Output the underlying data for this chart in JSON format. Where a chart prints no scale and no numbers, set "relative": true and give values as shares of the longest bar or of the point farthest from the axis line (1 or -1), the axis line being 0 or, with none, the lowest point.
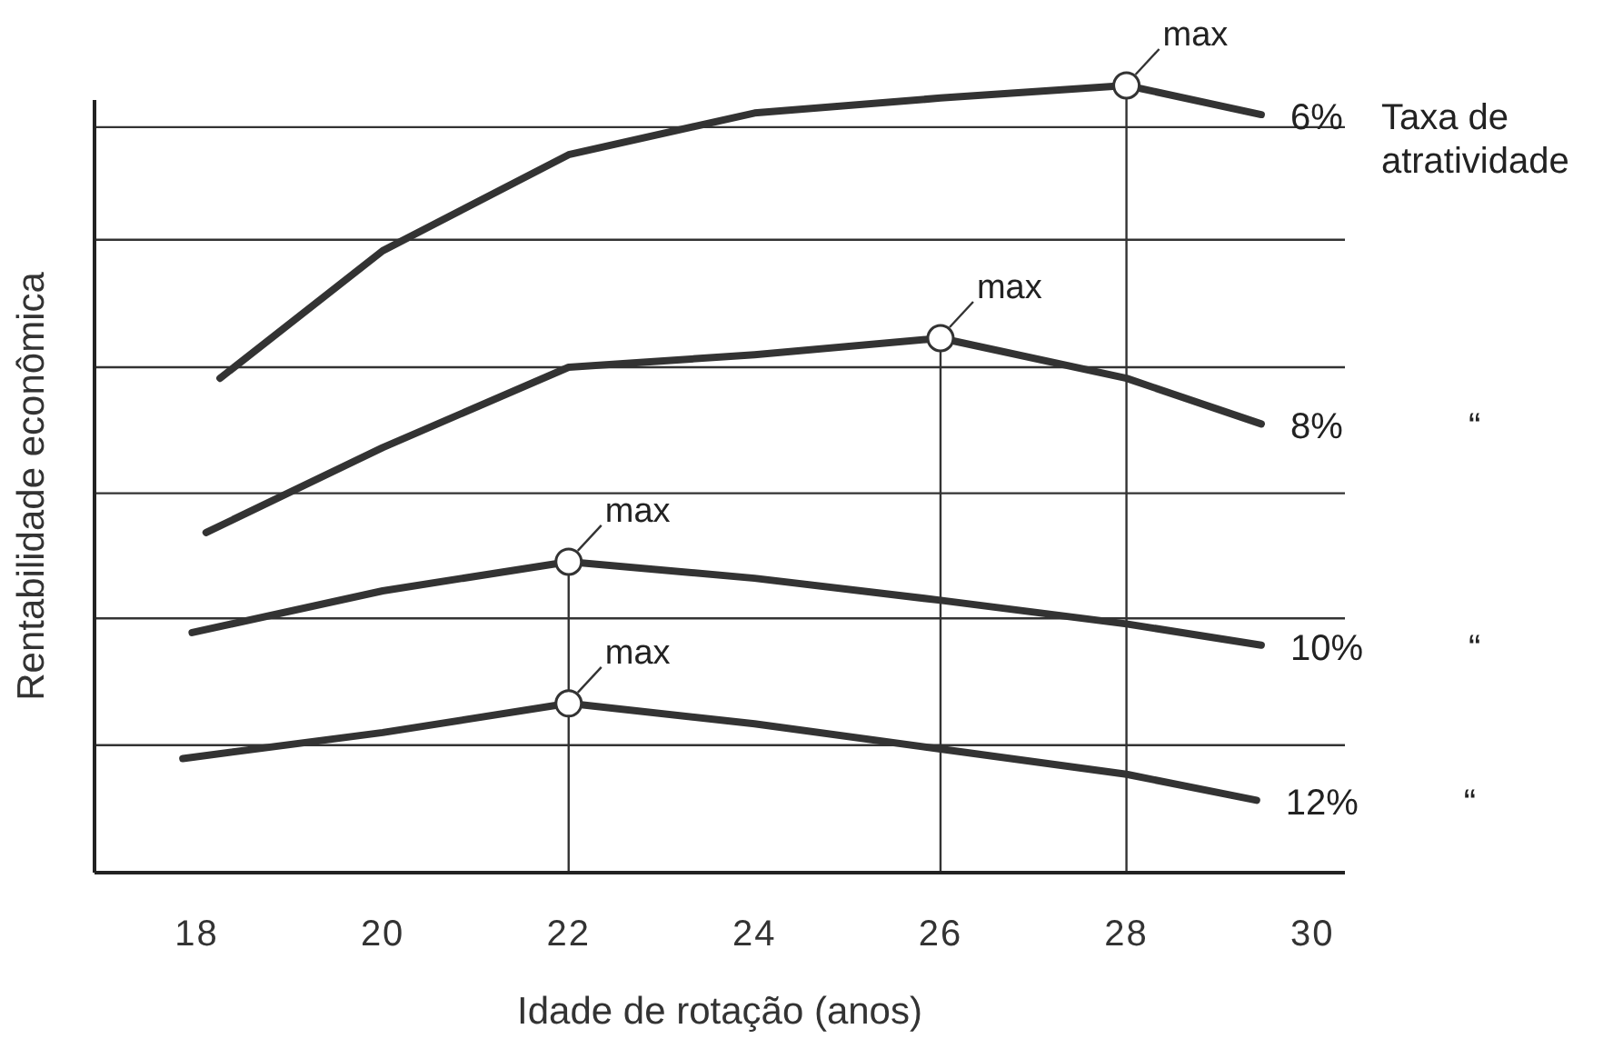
{
  "chart_data": {
    "type": "line",
    "relative": true,
    "xlabel": "Idade de rotação (anos)",
    "ylabel": "Rentabilidade econômica",
    "xlim": [
      16.9,
      30.35
    ],
    "xticks": [
      18,
      20,
      22,
      24,
      26,
      28,
      30
    ],
    "grid": "y",
    "line_style": "solid",
    "series": [
      {
        "name": "6% Taxa de atratividade",
        "color": "#333333",
        "x": [
          18.25,
          20,
          22,
          24,
          26,
          28,
          29.45
        ],
        "values": [
          0.628,
          0.79,
          0.912,
          0.965,
          0.984,
          1,
          0.963
        ]
      },
      {
        "name": "8% “",
        "color": "#333333",
        "x": [
          18.1,
          20,
          22,
          24,
          26,
          28,
          29.45
        ],
        "values": [
          0.432,
          0.54,
          0.642,
          0.658,
          0.679,
          0.628,
          0.57
        ]
      },
      {
        "name": "10% “",
        "color": "#333333",
        "x": [
          17.95,
          20,
          22,
          24,
          26,
          28,
          29.45
        ],
        "values": [
          0.305,
          0.358,
          0.395,
          0.374,
          0.346,
          0.316,
          0.289
        ]
      },
      {
        "name": "12% “",
        "color": "#333333",
        "x": [
          17.85,
          20,
          22,
          24,
          26,
          28,
          29.4
        ],
        "values": [
          0.145,
          0.178,
          0.215,
          0.189,
          0.157,
          0.125,
          0.092
        ]
      }
    ],
    "annotations": [
      {
        "text": "max",
        "x": 28,
        "y": 1
      },
      {
        "text": "max",
        "x": 26,
        "y": 0.679
      },
      {
        "text": "max",
        "x": 22,
        "y": 0.395
      },
      {
        "text": "max",
        "x": 22,
        "y": 0.215
      }
    ],
    "ref_lines": [
      {
        "axis": "x",
        "value": 28
      },
      {
        "axis": "x",
        "value": 26
      },
      {
        "axis": "x",
        "value": 22
      }
    ]
  }
}
